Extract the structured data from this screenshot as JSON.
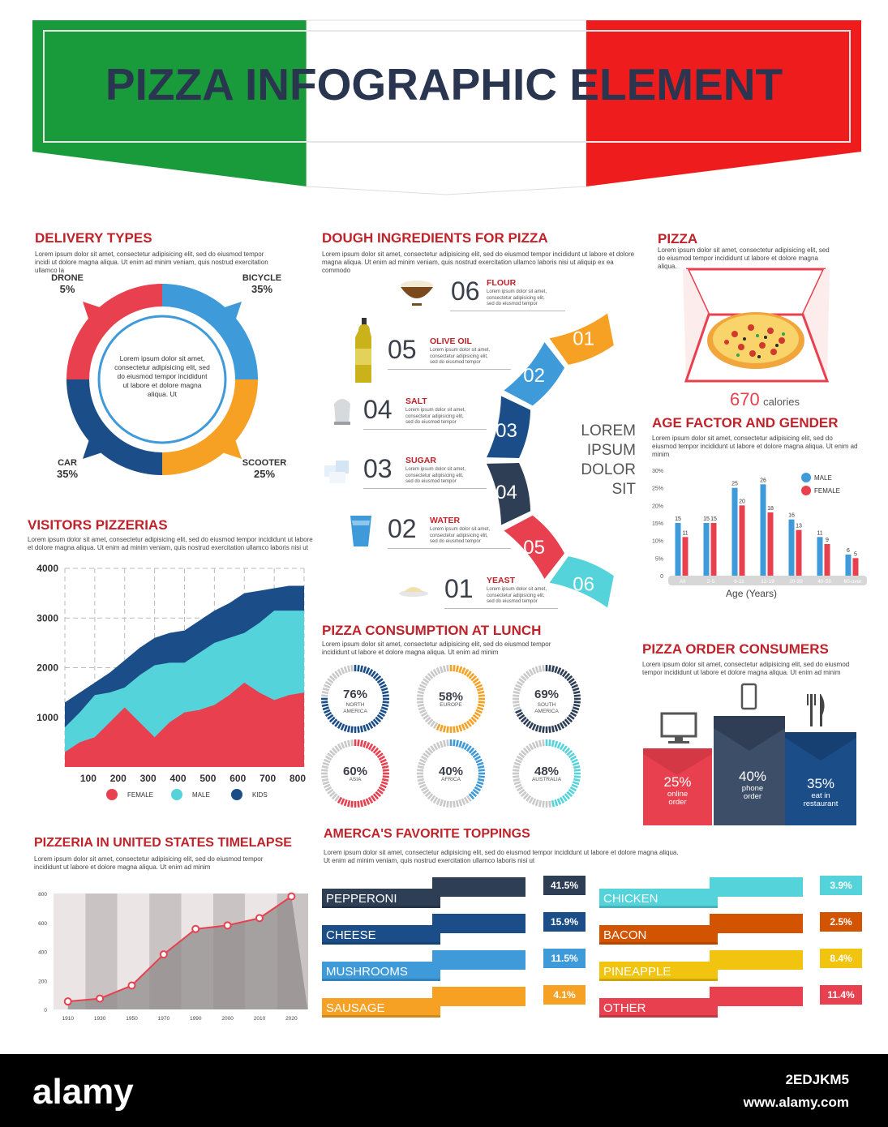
{
  "header": {
    "title": "PIZZA INFOGRAPHIC ELEMENT",
    "watermark": "a alamy"
  },
  "delivery": {
    "title": "DELIVERY TYPES",
    "text": "Lorem ipsum dolor sit amet, consectetur adipisicing elit, sed do eiusmod tempor incidi ut dolore magna aliqua. Ut enim ad minim veniam, quis nostrud exercitation ullamco la",
    "center_text": "Lorem ipsum dolor sit amet, consectetur adipisicing elit, sed do eiusmod tempor incididunt ut labore et dolore magna aliqua. Ut",
    "items": [
      {
        "name": "DRONE",
        "pct": "5%",
        "value": 5,
        "color": "#e8404f"
      },
      {
        "name": "BICYCLE",
        "pct": "35%",
        "value": 35,
        "color": "#3e9ad9"
      },
      {
        "name": "SCOOTER",
        "pct": "25%",
        "value": 25,
        "color": "#f6a124"
      },
      {
        "name": "CAR",
        "pct": "35%",
        "value": 35,
        "color": "#1b4e88"
      }
    ]
  },
  "dough": {
    "title": "DOUGH INGREDIENTS FOR PIZZA",
    "text": "Lorem ipsum dolor sit amet, consectetur adipisicing elit, sed do eiusmod tempor incididunt ut labore et dolore magna aliqua. Ut enim ad minim veniam, quis nostrud exercitation ullamco laboris nisi ut aliquip ex ea commodo",
    "item_text": "Lorem ipsum dolor sit amet, consectetur adipisicing elit, sed do eiusmod tempor",
    "center": [
      "LOREM",
      "IPSUM",
      "DOLOR",
      "SIT"
    ],
    "items": [
      {
        "num": "06",
        "name": "FLOUR",
        "color": "#55d3db",
        "icon": "flour-bowl-icon"
      },
      {
        "num": "05",
        "name": "OLIVE OIL",
        "color": "#e8404f",
        "icon": "olive-oil-bottle-icon"
      },
      {
        "num": "04",
        "name": "SALT",
        "color": "#2d3e55",
        "icon": "salt-shaker-icon"
      },
      {
        "num": "03",
        "name": "SUGAR",
        "color": "#1b4e88",
        "icon": "sugar-cubes-icon"
      },
      {
        "num": "02",
        "name": "WATER",
        "color": "#3e9ad9",
        "icon": "water-glass-icon"
      },
      {
        "num": "01",
        "name": "YEAST",
        "color": "#f6a124",
        "icon": "yeast-icon"
      }
    ]
  },
  "pizza": {
    "title": "PIZZA",
    "text": "Lorem ipsum dolor sit amet, consectetur adipisicing elit, sed do eiusmod tempor incididunt ut labore et dolore magna aliqua.",
    "calories_value": "670",
    "calories_label": "calories"
  },
  "age": {
    "title": "AGE FACTOR AND GENDER",
    "text": "Lorem ipsum dolor sit amet, consectetur adipisicing elit, sed do eiusmod tempor incididunt ut labore et dolore magna aliqua. Ut enim ad minim",
    "legend": [
      {
        "label": "MALE",
        "color": "#3e9ad9"
      },
      {
        "label": "FEMALE",
        "color": "#e8404f"
      }
    ],
    "xlabel": "Age (Years)"
  },
  "visitors": {
    "title": "VISITORS PIZZERIAS",
    "text": "Lorem ipsum dolor sit amet, consectetur adipisicing elit, sed do eiusmod tempor incididunt ut labore et dolore magna aliqua. Ut enim ad minim veniam, quis nostrud exercitation ullamco laboris nisi ut"
  },
  "lunch": {
    "title": "PIZZA CONSUMPTION AT LUNCH",
    "text": "Lorem ipsum dolor sit amet, consectetur adipisicing elit, sed do eiusmod tempor incididunt ut labore et dolore magna aliqua. Ut enim ad minim",
    "items": [
      {
        "pct": "76%",
        "value": 76,
        "region": [
          "NORTH",
          "AMERICA"
        ],
        "color": "#1b4e88"
      },
      {
        "pct": "58%",
        "value": 58,
        "region": [
          "EUROPE"
        ],
        "color": "#f6a124"
      },
      {
        "pct": "69%",
        "value": 69,
        "region": [
          "SOUTH",
          "AMERICA"
        ],
        "color": "#2d3e55"
      },
      {
        "pct": "60%",
        "value": 60,
        "region": [
          "ASIA"
        ],
        "color": "#e8404f"
      },
      {
        "pct": "40%",
        "value": 40,
        "region": [
          "AFRICA"
        ],
        "color": "#3e9ad9"
      },
      {
        "pct": "48%",
        "value": 48,
        "region": [
          "AUSTRALIA"
        ],
        "color": "#55d3db"
      }
    ]
  },
  "consumers": {
    "title": "PIZZA ORDER CONSUMERS",
    "text": "Lorem ipsum dolor sit amet, consectetur adipisicing elit, sed do eiusmod tempor incididunt ut labore et dolore magna aliqua. Ut enim ad minim",
    "items": [
      {
        "pct": "25%",
        "value": 25,
        "label": [
          "online",
          "order"
        ],
        "color": "#e8404f",
        "icon": "computer-monitor-icon"
      },
      {
        "pct": "40%",
        "value": 40,
        "label": [
          "phone",
          "order"
        ],
        "color": "#3d4f68",
        "icon": "smartphone-icon"
      },
      {
        "pct": "35%",
        "value": 35,
        "label": [
          "eat in",
          "restaurant"
        ],
        "color": "#1b4e88",
        "icon": "fork-knife-icon"
      }
    ]
  },
  "timelapse": {
    "title": "PIZZERIA IN UNITED STATES TIMELAPSE",
    "text": "Lorem ipsum dolor sit amet, consectetur adipisicing elit, sed do eiusmod tempor incididunt ut labore et dolore magna aliqua. Ut enim ad minim"
  },
  "toppings": {
    "title": "AMERCA'S FAVORITE TOPPINGS",
    "text": "Lorem ipsum dolor sit amet, consectetur adipisicing elit, sed do eiusmod tempor incididunt ut labore et dolore magna aliqua. Ut enim ad minim veniam, quis nostrud exercitation ullamco laboris nisi ut",
    "left": [
      {
        "name": "PEPPERONI",
        "pct": "41.5%",
        "value": 41.5,
        "color": "#2d3e55"
      },
      {
        "name": "CHEESE",
        "pct": "15.9%",
        "value": 15.9,
        "color": "#1b4e88"
      },
      {
        "name": "MUSHROOMS",
        "pct": "11.5%",
        "value": 11.5,
        "color": "#3e9ad9"
      },
      {
        "name": "SAUSAGE",
        "pct": "4.1%",
        "value": 4.1,
        "color": "#f6a124"
      }
    ],
    "right": [
      {
        "name": "CHICKEN",
        "pct": "3.9%",
        "value": 3.9,
        "color": "#55d3db"
      },
      {
        "name": "BACON",
        "pct": "2.5%",
        "value": 2.5,
        "color": "#d35400"
      },
      {
        "name": "PINEAPPLE",
        "pct": "8.4%",
        "value": 8.4,
        "color": "#f1c40f"
      },
      {
        "name": "OTHER",
        "pct": "11.4%",
        "value": 11.4,
        "color": "#e8404f"
      }
    ]
  },
  "footer": {
    "logo": "alamy",
    "image_id": "2EDJKM5",
    "url": "www.alamy.com"
  },
  "chart_data": [
    {
      "type": "pie",
      "title": "DELIVERY TYPES",
      "categories": [
        "DRONE",
        "BICYCLE",
        "SCOOTER",
        "CAR"
      ],
      "values": [
        5,
        35,
        25,
        35
      ]
    },
    {
      "type": "bar",
      "title": "AGE FACTOR AND GENDER",
      "xlabel": "Age (Years)",
      "categories": [
        "All",
        "2-5",
        "6-11",
        "12-19",
        "20-39",
        "40-59",
        "60-over"
      ],
      "series": [
        {
          "name": "MALE",
          "values": [
            15,
            15,
            25,
            26,
            16,
            11,
            6
          ],
          "color": "#3e9ad9"
        },
        {
          "name": "FEMALE",
          "values": [
            11,
            15,
            20,
            18,
            13,
            9,
            5
          ],
          "color": "#e8404f"
        }
      ],
      "yticks": [
        "0",
        "5%",
        "10%",
        "15%",
        "20%",
        "25%",
        "30%"
      ],
      "ylim": [
        0,
        30
      ]
    },
    {
      "type": "area",
      "title": "VISITORS PIZZERIAS",
      "x": [
        0,
        50,
        100,
        150,
        200,
        250,
        300,
        350,
        400,
        450,
        500,
        550,
        600,
        650,
        700,
        750,
        800
      ],
      "xticks": [
        "100",
        "200",
        "300",
        "400",
        "500",
        "600",
        "700",
        "800"
      ],
      "yticks": [
        "1000",
        "2000",
        "3000",
        "4000"
      ],
      "ylim": [
        0,
        4000
      ],
      "xlim": [
        0,
        800
      ],
      "series": [
        {
          "name": "FEMALE",
          "values": [
            300,
            500,
            600,
            900,
            1200,
            900,
            600,
            900,
            1100,
            1150,
            1250,
            1450,
            1700,
            1500,
            1350,
            1450,
            1500
          ],
          "color": "#e8404f"
        },
        {
          "name": "MALE",
          "values": [
            800,
            1100,
            1450,
            1500,
            1600,
            1850,
            2050,
            2100,
            2100,
            2300,
            2500,
            2600,
            2700,
            2900,
            3150,
            3150,
            3150
          ],
          "color": "#55d3db"
        },
        {
          "name": "KIDS",
          "values": [
            1300,
            1500,
            1700,
            1900,
            2150,
            2400,
            2600,
            2700,
            2750,
            2950,
            3150,
            3300,
            3500,
            3550,
            3600,
            3650,
            3650
          ],
          "color": "#1b4e88"
        }
      ]
    },
    {
      "type": "line",
      "title": "PIZZERIA IN UNITED STATES TIMELAPSE",
      "x": [
        1910,
        1930,
        1950,
        1970,
        1990,
        2000,
        2010,
        2020
      ],
      "values": [
        55,
        75,
        165,
        380,
        555,
        580,
        630,
        780
      ],
      "yticks": [
        "0",
        "200",
        "400",
        "600",
        "800"
      ],
      "ylim": [
        0,
        800
      ]
    },
    {
      "type": "pie",
      "title": "PIZZA CONSUMPTION AT LUNCH",
      "categories": [
        "NORTH AMERICA",
        "EUROPE",
        "SOUTH AMERICA",
        "ASIA",
        "AFRICA",
        "AUSTRALIA"
      ],
      "values": [
        76,
        58,
        69,
        60,
        40,
        48
      ]
    },
    {
      "type": "bar",
      "title": "PIZZA ORDER CONSUMERS",
      "categories": [
        "online order",
        "phone order",
        "eat in restaurant"
      ],
      "values": [
        25,
        40,
        35
      ]
    },
    {
      "type": "bar",
      "title": "AMERCA'S FAVORITE TOPPINGS",
      "categories": [
        "PEPPERONI",
        "CHEESE",
        "MUSHROOMS",
        "SAUSAGE",
        "CHICKEN",
        "BACON",
        "PINEAPPLE",
        "OTHER"
      ],
      "values": [
        41.5,
        15.9,
        11.5,
        4.1,
        3.9,
        2.5,
        8.4,
        11.4
      ]
    }
  ]
}
